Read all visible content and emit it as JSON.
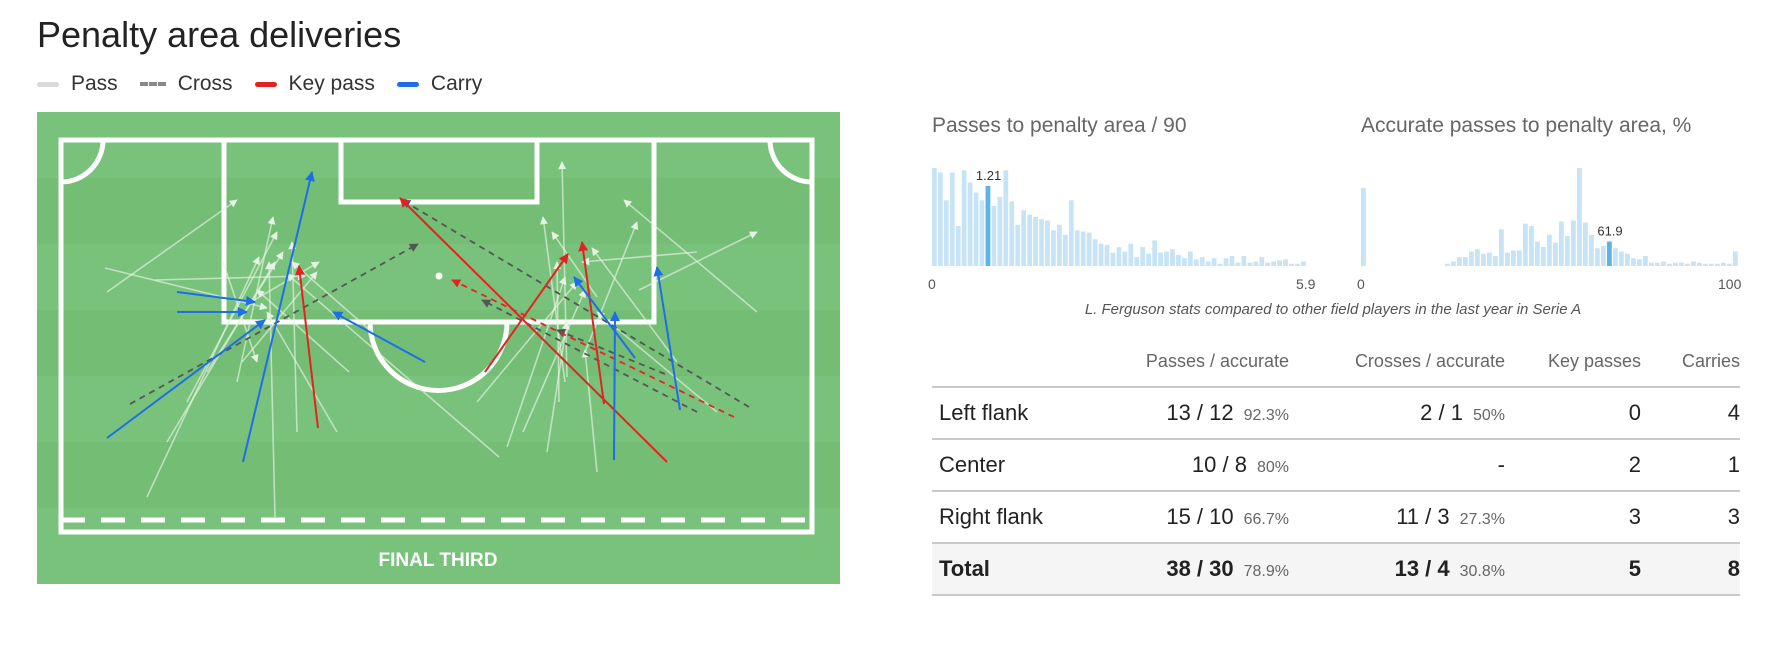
{
  "title": "Penalty area deliveries",
  "legend": [
    {
      "label": "Pass",
      "color": "#d9d9d9",
      "style": "solid"
    },
    {
      "label": "Cross",
      "color": "#888888",
      "style": "dashed"
    },
    {
      "label": "Key pass",
      "color": "#e52222",
      "style": "solid"
    },
    {
      "label": "Carry",
      "color": "#1e6ee8",
      "style": "solid"
    }
  ],
  "pitch": {
    "zone_label": "FINAL THIRD",
    "grass_colors": [
      "#79c27b",
      "#72bd75"
    ],
    "line_color": "#ffffff"
  },
  "chart_data": [
    {
      "type": "bar",
      "title": "Passes to penalty area / 90",
      "xlim": [
        0,
        5.9
      ],
      "x_tick_labels": [
        "0",
        "5.9"
      ],
      "highlight": {
        "value": 1.21,
        "label": "1.21",
        "bin": 9
      },
      "bar_color": "#c6e4f6",
      "highlight_color": "#5ab4e5",
      "values": [
        88,
        84,
        59,
        84,
        36,
        86,
        75,
        66,
        59,
        72,
        54,
        62,
        86,
        58,
        37,
        50,
        46,
        44,
        42,
        41,
        32,
        37,
        28,
        59,
        32,
        31,
        30,
        24,
        20,
        19,
        12,
        17,
        13,
        20,
        8,
        17,
        11,
        23,
        12,
        13,
        15,
        10,
        7,
        13,
        6,
        8,
        4,
        7,
        2,
        7,
        9,
        3,
        9,
        3,
        4,
        8,
        3,
        4,
        5,
        6,
        2,
        2,
        4
      ]
    },
    {
      "type": "bar",
      "title": "Accurate passes to penalty area, %",
      "xlim": [
        0,
        100
      ],
      "x_tick_labels": [
        "0",
        "100"
      ],
      "highlight": {
        "value": 61.9,
        "label": "61.9",
        "bin": 41
      },
      "bar_color": "#c6e4f6",
      "highlight_color": "#5ab4e5",
      "values": [
        70,
        0,
        0,
        0,
        0,
        0,
        0,
        0,
        0,
        0,
        0,
        0,
        0,
        0,
        2,
        4,
        8,
        8,
        13,
        15,
        11,
        12,
        9,
        33,
        12,
        14,
        14,
        38,
        36,
        22,
        17,
        28,
        21,
        40,
        27,
        41,
        88,
        39,
        28,
        16,
        18,
        22,
        16,
        13,
        11,
        7,
        6,
        9,
        3,
        3,
        4,
        2,
        3,
        3,
        2,
        4,
        3,
        2,
        2,
        2,
        3,
        2,
        13
      ]
    }
  ],
  "caption": "L. Ferguson stats compared to other field players in the last year in Serie A",
  "table": {
    "headers": [
      "",
      "Passes / accurate",
      "Crosses / accurate",
      "Key passes",
      "Carries"
    ],
    "rows": [
      {
        "label": "Left flank",
        "passes": "13 / 12",
        "passes_pct": "92.3%",
        "crosses": "2 / 1",
        "crosses_pct": "50%",
        "key_passes": "0",
        "carries": "4"
      },
      {
        "label": "Center",
        "passes": "10 / 8",
        "passes_pct": "80%",
        "crosses": "-",
        "crosses_pct": "",
        "key_passes": "2",
        "carries": "1"
      },
      {
        "label": "Right flank",
        "passes": "15 / 10",
        "passes_pct": "66.7%",
        "crosses": "11 / 3",
        "crosses_pct": "27.3%",
        "key_passes": "3",
        "carries": "3"
      }
    ],
    "total": {
      "label": "Total",
      "passes": "38 / 30",
      "passes_pct": "78.9%",
      "crosses": "13 / 4",
      "crosses_pct": "30.8%",
      "key_passes": "5",
      "carries": "8"
    }
  }
}
